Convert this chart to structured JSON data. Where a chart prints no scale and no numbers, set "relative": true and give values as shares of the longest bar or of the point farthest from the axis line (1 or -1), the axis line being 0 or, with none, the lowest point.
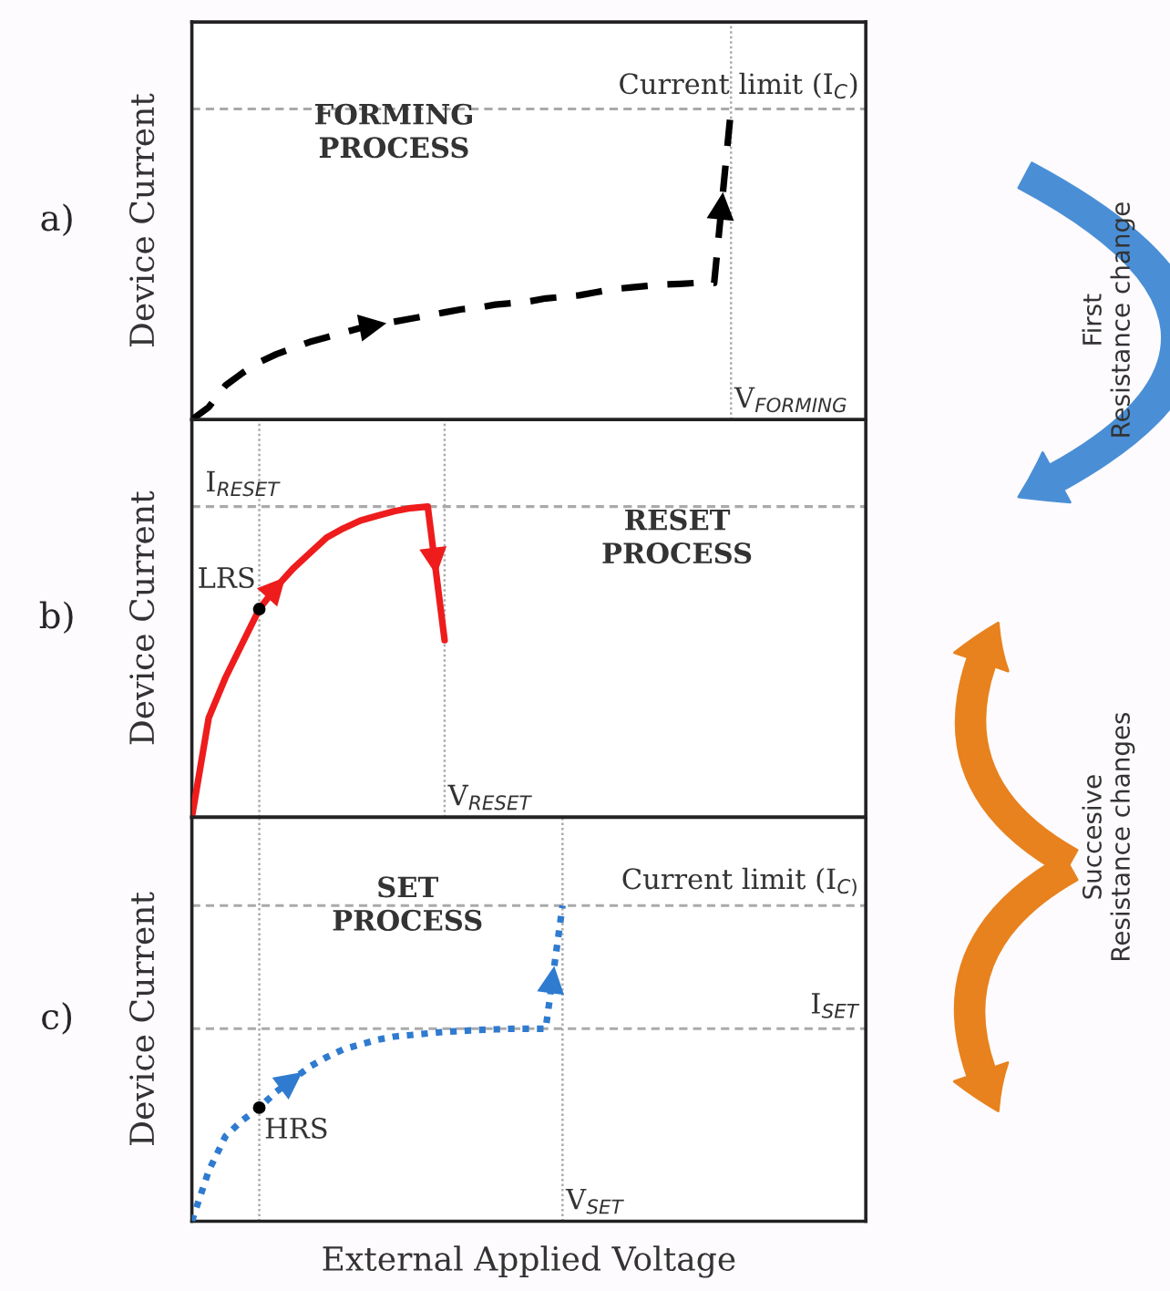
{
  "chart_data": [
    {
      "type": "line",
      "title": "a)",
      "ylabel": "Device Current",
      "relative": true,
      "line_style": "dashed",
      "marker": "none",
      "categories": [
        null,
        null,
        null,
        null,
        null,
        null,
        null,
        null,
        null,
        null,
        null,
        null,
        null,
        null,
        null,
        null,
        null,
        null,
        null,
        null,
        null,
        null,
        null,
        null,
        null,
        null,
        null,
        null,
        null,
        null,
        null,
        null,
        null,
        null,
        null,
        null,
        null,
        null,
        null,
        null,
        null
      ],
      "series": [
        {
          "color": "#000000",
          "values": [
            0.0,
            0.04,
            0.11,
            0.15,
            0.185,
            0.21,
            0.23,
            0.25,
            0.265,
            0.28,
            0.295,
            0.305,
            0.315,
            0.325,
            0.335,
            0.345,
            0.355,
            0.36,
            0.37,
            0.375,
            0.38,
            0.39,
            0.395,
            0.4,
            0.41,
            0.42,
            0.425,
            0.43,
            0.435,
            0.437,
            0.44,
            0.44,
            1.0,
            null,
            null,
            null,
            null,
            null,
            null,
            null,
            null
          ]
        }
      ],
      "ref_lines": [
        {
          "axis": "y",
          "value": 1.0,
          "label": "Current limit (I$_{C}$)",
          "color": "#aaaaaa",
          "line_style": "dotted"
        }
      ],
      "annotations": [
        "FORMING\nPROCESS",
        "V$_{FORMING}$",
        "First\nResistance change"
      ]
    },
    {
      "type": "line",
      "title": "b)",
      "ylabel": "Device Current",
      "relative": true,
      "line_style": "solid",
      "marker": "none",
      "categories": [
        null,
        null,
        null,
        null,
        null,
        null,
        null,
        null,
        null,
        null,
        null,
        null,
        null,
        null,
        null,
        null,
        null,
        null,
        null,
        null,
        null,
        null,
        null,
        null,
        null,
        null,
        null,
        null,
        null,
        null,
        null,
        null,
        null,
        null,
        null,
        null,
        null,
        null,
        null,
        null,
        null
      ],
      "series": [
        {
          "color": "#ee1c1c",
          "values": [
            0.0,
            0.32,
            0.45,
            0.56,
            0.67,
            0.74,
            0.8,
            0.85,
            0.9,
            0.93,
            0.955,
            0.97,
            0.985,
            0.995,
            1.0,
            0.57,
            null,
            null,
            null,
            null,
            null,
            null,
            null,
            null,
            null,
            null,
            null,
            null,
            null,
            null,
            null,
            null,
            null,
            null,
            null,
            null,
            null,
            null,
            null,
            null,
            null
          ]
        }
      ],
      "ref_lines": [
        {
          "axis": "y",
          "value": 1.0,
          "label": "I$_{RESET}$",
          "color": "#aaaaaa",
          "line_style": "dotted"
        }
      ],
      "annotations": [
        "LRS",
        "RESET\nPROCESS",
        "V$_{RESET}$",
        "Succesive\nResistance changes"
      ]
    },
    {
      "type": "line",
      "title": "c)",
      "ylabel": "Device Current",
      "xlabel": "External Applied Voltage",
      "relative": true,
      "line_style": "dotted",
      "marker": "none",
      "categories": [
        null,
        null,
        null,
        null,
        null,
        null,
        null,
        null,
        null,
        null,
        null,
        null,
        null,
        null,
        null,
        null,
        null,
        null,
        null,
        null,
        null,
        null,
        null,
        null,
        null,
        null,
        null,
        null,
        null,
        null,
        null,
        null,
        null,
        null,
        null,
        null,
        null,
        null,
        null,
        null,
        null
      ],
      "series": [
        {
          "color": "#2f7bd0",
          "values": [
            0.0,
            0.16,
            0.27,
            0.32,
            0.36,
            0.41,
            0.45,
            0.49,
            0.52,
            0.545,
            0.56,
            0.575,
            0.585,
            0.59,
            0.595,
            0.6,
            0.603,
            0.606,
            0.608,
            0.61,
            0.61,
            0.61,
            1.0,
            null,
            null,
            null,
            null,
            null,
            null,
            null,
            null,
            null,
            null,
            null,
            null,
            null,
            null,
            null,
            null,
            null,
            null
          ]
        }
      ],
      "ref_lines": [
        {
          "axis": "y",
          "value": 1.0,
          "label": "Current limit (I$_{C)}$",
          "color": "#aaaaaa",
          "line_style": "dotted"
        },
        {
          "axis": "y",
          "value": 0.61,
          "label": "I$_{SET}$",
          "color": "#aaaaaa",
          "line_style": "dotted"
        }
      ],
      "annotations": [
        "SET\nPROCESS",
        "HRS",
        "V$_{SET}$"
      ]
    }
  ]
}
